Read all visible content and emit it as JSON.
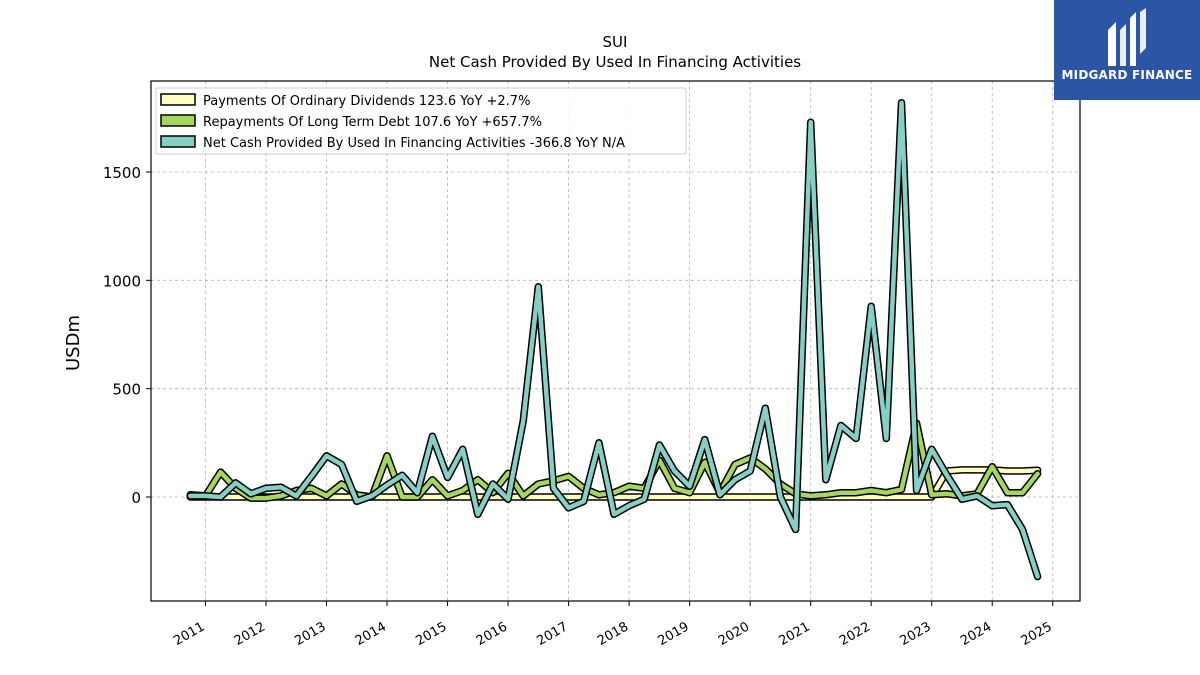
{
  "brand": {
    "name": "MIDGARD FINANCE",
    "logo_icon": "midgard-logo-icon",
    "color": "#2d55a6"
  },
  "chart_data": {
    "type": "line",
    "title": "SUI",
    "subtitle": "Net Cash Provided By Used In Financing Activities",
    "xlabel": "",
    "ylabel": "USDm",
    "ylim": [
      -480,
      1920
    ],
    "xlim": [
      2010.1,
      2025.45
    ],
    "yticks": [
      0,
      500,
      1000,
      1500
    ],
    "xticks": [
      "2011",
      "2012",
      "2013",
      "2014",
      "2015",
      "2016",
      "2017",
      "2018",
      "2019",
      "2020",
      "2021",
      "2022",
      "2023",
      "2024",
      "2025"
    ],
    "grid": true,
    "legend_position": "top-left",
    "series": [
      {
        "name": "Payments Of Ordinary Dividends",
        "legend_label": "Payments Of Ordinary Dividends  123.6 YoY +2.7%",
        "color": "#ffffc0",
        "x": [
          2010.75,
          2011.0,
          2011.25,
          2011.5,
          2011.75,
          2012.0,
          2012.25,
          2012.5,
          2012.75,
          2013.0,
          2013.25,
          2013.5,
          2013.75,
          2014.0,
          2014.25,
          2014.5,
          2014.75,
          2015.0,
          2015.25,
          2015.5,
          2015.75,
          2016.0,
          2016.25,
          2016.5,
          2016.75,
          2017.0,
          2017.25,
          2017.5,
          2017.75,
          2018.0,
          2018.25,
          2018.5,
          2018.75,
          2019.0,
          2019.25,
          2019.5,
          2019.75,
          2020.0,
          2020.25,
          2020.5,
          2020.75,
          2021.0,
          2021.25,
          2021.5,
          2021.75,
          2022.0,
          2022.25,
          2022.5,
          2022.75,
          2023.0,
          2023.25,
          2023.5,
          2023.75,
          2024.0,
          2024.25,
          2024.5,
          2024.75
        ],
        "values": [
          0,
          0,
          0,
          0,
          0,
          0,
          0,
          0,
          0,
          0,
          0,
          0,
          0,
          0,
          0,
          0,
          0,
          0,
          0,
          0,
          0,
          0,
          0,
          0,
          0,
          0,
          0,
          0,
          0,
          0,
          0,
          0,
          0,
          0,
          0,
          0,
          0,
          0,
          0,
          0,
          0,
          0,
          0,
          0,
          0,
          0,
          0,
          0,
          0,
          0,
          120,
          125,
          125,
          125,
          120,
          120,
          123.6
        ]
      },
      {
        "name": "Repayments Of Long Term Debt",
        "legend_label": "Repayments Of Long Term Debt  107.6 YoY +657.7%",
        "color": "#a6d65d",
        "x": [
          2010.75,
          2011.0,
          2011.25,
          2011.5,
          2011.75,
          2012.0,
          2012.25,
          2012.5,
          2012.75,
          2013.0,
          2013.25,
          2013.5,
          2013.75,
          2014.0,
          2014.25,
          2014.5,
          2014.75,
          2015.0,
          2015.25,
          2015.5,
          2015.75,
          2016.0,
          2016.25,
          2016.5,
          2016.75,
          2017.0,
          2017.25,
          2017.5,
          2017.75,
          2018.0,
          2018.25,
          2018.5,
          2018.75,
          2019.0,
          2019.25,
          2019.5,
          2019.75,
          2020.0,
          2020.25,
          2020.5,
          2020.75,
          2021.0,
          2021.25,
          2021.5,
          2021.75,
          2022.0,
          2022.25,
          2022.5,
          2022.75,
          2023.0,
          2023.25,
          2023.5,
          2023.75,
          2024.0,
          2024.25,
          2024.5,
          2024.75
        ],
        "values": [
          10,
          5,
          115,
          40,
          -5,
          -5,
          5,
          30,
          40,
          5,
          60,
          10,
          0,
          190,
          0,
          0,
          80,
          5,
          30,
          80,
          20,
          110,
          5,
          60,
          75,
          95,
          40,
          10,
          20,
          50,
          40,
          170,
          40,
          20,
          160,
          20,
          150,
          180,
          130,
          60,
          15,
          5,
          10,
          20,
          20,
          30,
          20,
          35,
          340,
          10,
          15,
          5,
          15,
          140,
          20,
          20,
          107.6
        ]
      },
      {
        "name": "Net Cash Provided By Used In Financing Activities",
        "legend_label": "Net Cash Provided By Used In Financing Activities  -366.8 YoY N/A",
        "color": "#86cfc5",
        "x": [
          2010.75,
          2011.0,
          2011.25,
          2011.5,
          2011.75,
          2012.0,
          2012.25,
          2012.5,
          2012.75,
          2013.0,
          2013.25,
          2013.5,
          2013.75,
          2014.0,
          2014.25,
          2014.5,
          2014.75,
          2015.0,
          2015.25,
          2015.5,
          2015.75,
          2016.0,
          2016.25,
          2016.5,
          2016.75,
          2017.0,
          2017.25,
          2017.5,
          2017.75,
          2018.0,
          2018.25,
          2018.5,
          2018.75,
          2019.0,
          2019.25,
          2019.5,
          2019.75,
          2020.0,
          2020.25,
          2020.5,
          2020.75,
          2021.0,
          2021.25,
          2021.5,
          2021.75,
          2022.0,
          2022.25,
          2022.5,
          2022.75,
          2023.0,
          2023.25,
          2023.5,
          2023.75,
          2024.0,
          2024.25,
          2024.5,
          2024.75
        ],
        "values": [
          5,
          5,
          0,
          65,
          15,
          40,
          45,
          5,
          95,
          190,
          150,
          -20,
          5,
          55,
          100,
          20,
          280,
          90,
          220,
          -80,
          60,
          -10,
          350,
          970,
          40,
          -50,
          -20,
          250,
          -80,
          -40,
          -10,
          240,
          120,
          50,
          265,
          10,
          80,
          120,
          410,
          0,
          -150,
          1730,
          80,
          330,
          270,
          880,
          270,
          1820,
          30,
          220,
          100,
          -10,
          5,
          -40,
          -35,
          -150,
          -366.8
        ]
      }
    ]
  }
}
